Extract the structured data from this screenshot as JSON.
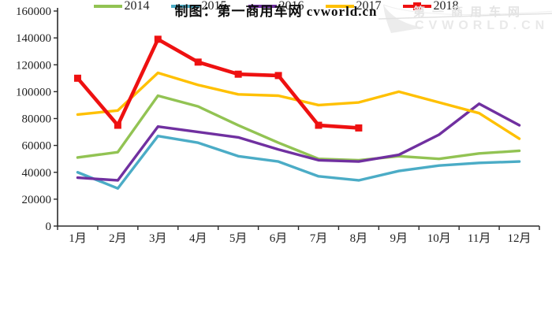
{
  "caption": "制图：第一商用车网 cvworld.cn",
  "watermark": {
    "line1": "第一商用车网",
    "line2": "CVWORLD.CN"
  },
  "chart_data": {
    "type": "line",
    "title": "",
    "xlabel": "",
    "ylabel": "",
    "categories": [
      "1月",
      "2月",
      "3月",
      "4月",
      "5月",
      "6月",
      "7月",
      "8月",
      "9月",
      "10月",
      "11月",
      "12月"
    ],
    "ylim": [
      0,
      160000
    ],
    "ytick_step": 20000,
    "grid": false,
    "legend_position": "bottom",
    "series": [
      {
        "name": "2014",
        "color": "#92c353",
        "marker": "none",
        "values": [
          51000,
          55000,
          97000,
          89000,
          75000,
          62000,
          50000,
          49000,
          52000,
          50000,
          54000,
          56000
        ]
      },
      {
        "name": "2015",
        "color": "#4bacc6",
        "marker": "none",
        "values": [
          40000,
          28000,
          67000,
          62000,
          52000,
          48000,
          37000,
          34000,
          41000,
          45000,
          47000,
          48000
        ]
      },
      {
        "name": "2016",
        "color": "#7030a0",
        "marker": "none",
        "values": [
          36000,
          34000,
          74000,
          70000,
          66000,
          57000,
          49000,
          48000,
          53000,
          68000,
          91000,
          75000
        ]
      },
      {
        "name": "2017",
        "color": "#ffc000",
        "marker": "none",
        "values": [
          83000,
          86000,
          114000,
          105000,
          98000,
          97000,
          90000,
          92000,
          100000,
          92000,
          84000,
          65000
        ]
      },
      {
        "name": "2018",
        "color": "#ee1111",
        "marker": "square",
        "values": [
          110000,
          75000,
          139000,
          122000,
          113000,
          112000,
          75000,
          73000
        ]
      }
    ]
  }
}
